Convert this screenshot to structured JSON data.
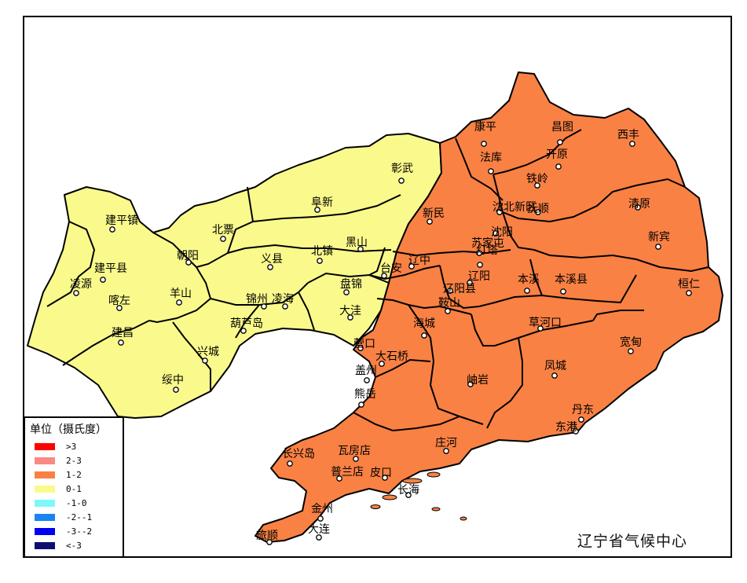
{
  "map": {
    "colors": {
      "orange": "#f98144",
      "yellow": "#fafa8c",
      "boundary": "#000000",
      "sea": "#ffffff"
    },
    "cities": [
      {
        "id": "kangping",
        "name": "康平"
      },
      {
        "id": "changtu",
        "name": "昌图"
      },
      {
        "id": "xifeng",
        "name": "西丰"
      },
      {
        "id": "faku",
        "name": "法库"
      },
      {
        "id": "kaiyuan",
        "name": "开原"
      },
      {
        "id": "zhangwu",
        "name": "彰武"
      },
      {
        "id": "tieling",
        "name": "铁岭"
      },
      {
        "id": "jianpingzhen",
        "name": "建平镇"
      },
      {
        "id": "fuxin",
        "name": "阜新"
      },
      {
        "id": "shenbeixinqu",
        "name": "沈北新区"
      },
      {
        "id": "xinmin",
        "name": "新民"
      },
      {
        "id": "qingyuan",
        "name": "清原"
      },
      {
        "id": "fushun",
        "name": "抚顺"
      },
      {
        "id": "beipiao",
        "name": "北票"
      },
      {
        "id": "shenyang",
        "name": "沈阳"
      },
      {
        "id": "xinbin",
        "name": "新宾"
      },
      {
        "id": "heishan",
        "name": "黑山"
      },
      {
        "id": "sujiatun",
        "name": "苏家屯"
      },
      {
        "id": "chaoyang",
        "name": "朝阳"
      },
      {
        "id": "yixian",
        "name": "义县"
      },
      {
        "id": "beizhen",
        "name": "北镇"
      },
      {
        "id": "liaozhong",
        "name": "辽中"
      },
      {
        "id": "dengta",
        "name": "灯塔"
      },
      {
        "id": "jianpingxian",
        "name": "建平县"
      },
      {
        "id": "taian",
        "name": "台安"
      },
      {
        "id": "liaoyang",
        "name": "辽阳"
      },
      {
        "id": "benxi",
        "name": "本溪"
      },
      {
        "id": "benxixian",
        "name": "本溪县"
      },
      {
        "id": "huanren",
        "name": "桓仁"
      },
      {
        "id": "lingyuan",
        "name": "凌源"
      },
      {
        "id": "panjin",
        "name": "盘锦"
      },
      {
        "id": "liaoyangxian",
        "name": "辽阳县"
      },
      {
        "id": "kazuo",
        "name": "喀左"
      },
      {
        "id": "yangshan",
        "name": "羊山"
      },
      {
        "id": "jinzhou",
        "name": "锦州"
      },
      {
        "id": "linghai",
        "name": "凌海"
      },
      {
        "id": "anshan",
        "name": "鞍山"
      },
      {
        "id": "dawa",
        "name": "大洼"
      },
      {
        "id": "haicheng",
        "name": "海城"
      },
      {
        "id": "caohekou",
        "name": "草河口"
      },
      {
        "id": "huludao",
        "name": "葫芦岛"
      },
      {
        "id": "jianchang",
        "name": "建昌"
      },
      {
        "id": "yingkou",
        "name": "营口"
      },
      {
        "id": "kuandian",
        "name": "宽甸"
      },
      {
        "id": "xingcheng",
        "name": "兴城"
      },
      {
        "id": "dashiqiao",
        "name": "大石桥"
      },
      {
        "id": "gaizhou",
        "name": "盖州"
      },
      {
        "id": "fengcheng",
        "name": "凤城"
      },
      {
        "id": "xiuyan",
        "name": "岫岩"
      },
      {
        "id": "suizhong",
        "name": "绥中"
      },
      {
        "id": "xiongyue",
        "name": "熊岳"
      },
      {
        "id": "dandong",
        "name": "丹东"
      },
      {
        "id": "donggang",
        "name": "东港"
      },
      {
        "id": "zhuanghe",
        "name": "庄河"
      },
      {
        "id": "changxingdao",
        "name": "长兴岛"
      },
      {
        "id": "wafangdian",
        "name": "瓦房店"
      },
      {
        "id": "pulandian",
        "name": "普兰店"
      },
      {
        "id": "pikou",
        "name": "皮口"
      },
      {
        "id": "changhai",
        "name": "长海"
      },
      {
        "id": "jinzhou_dl",
        "name": "金州"
      },
      {
        "id": "dalian",
        "name": "大连"
      },
      {
        "id": "lvshun",
        "name": "旅顺"
      }
    ]
  },
  "legend": {
    "title": "单位（摄氏度）",
    "items": [
      {
        "label": ">3",
        "color": "#ff0000"
      },
      {
        "label": "2-3",
        "color": "#f98a84"
      },
      {
        "label": "1-2",
        "color": "#f98144"
      },
      {
        "label": "0-1",
        "color": "#fafa8c"
      },
      {
        "label": "-1-0",
        "color": "#7ef8f8"
      },
      {
        "label": "-2--1",
        "color": "#1a84f4"
      },
      {
        "label": "-3--2",
        "color": "#0000f0"
      },
      {
        "label": "<-3",
        "color": "#0e0e72"
      }
    ]
  },
  "credit": "辽宁省气候中心"
}
